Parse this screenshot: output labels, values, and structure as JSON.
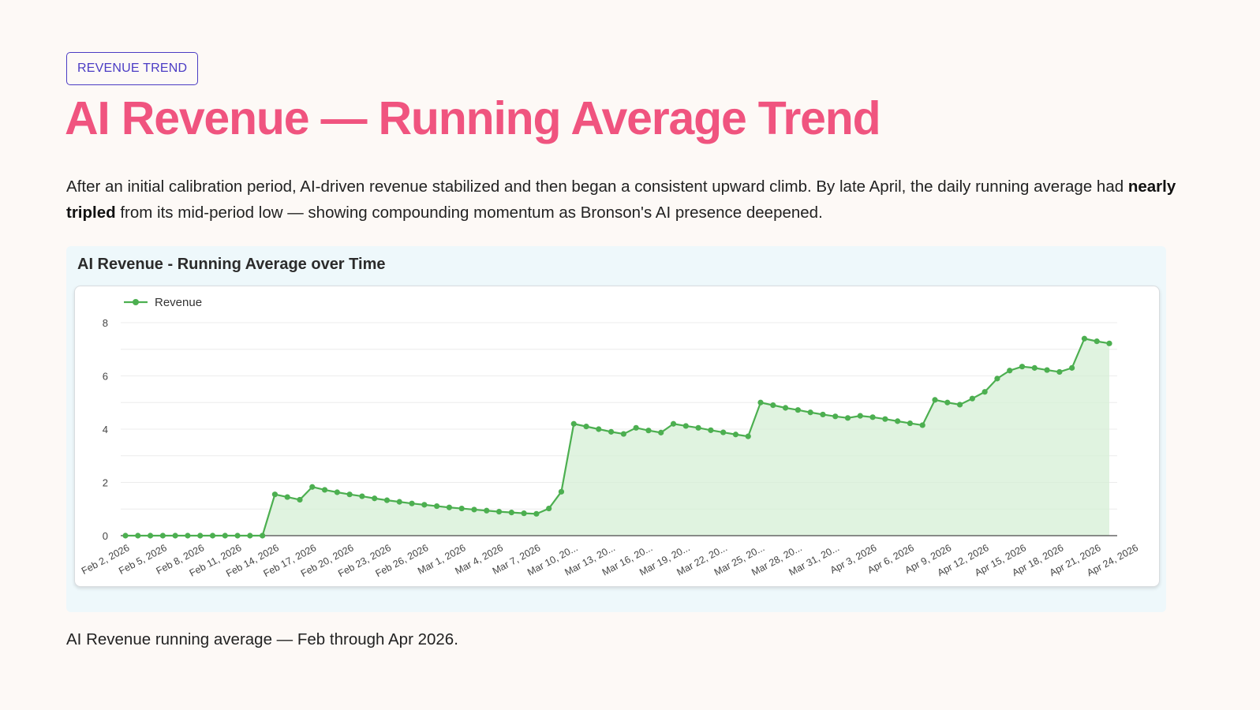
{
  "tag": "REVENUE TREND",
  "title": "AI Revenue — Running Average Trend",
  "description": {
    "before": "After an initial calibration period, AI-driven revenue stabilized and then began a consistent upward climb. By late April, the daily running average had ",
    "bold": "nearly tripled",
    "after": " from its mid-period low — showing compounding momentum as Bronson's AI presence deepened."
  },
  "caption": "AI Revenue running average — Feb through Apr 2026.",
  "colors": {
    "accent_title": "#f0547f",
    "tag": "#4b3cc4",
    "series_line": "#4caf50",
    "series_fill": "#d6efd6"
  },
  "chart_data": {
    "type": "area",
    "title": "AI Revenue - Running Average over Time",
    "xlabel": "",
    "ylabel": "",
    "ylim": [
      0,
      8
    ],
    "yticks": [
      0,
      2,
      4,
      6,
      8
    ],
    "grid": true,
    "legend_position": "top-left",
    "x_tick_labels": [
      "Feb 2, 2026",
      "Feb 5, 2026",
      "Feb 8, 2026",
      "Feb 11, 2026",
      "Feb 14, 2026",
      "Feb 17, 2026",
      "Feb 20, 2026",
      "Feb 23, 2026",
      "Feb 26, 2026",
      "Mar 1, 2026",
      "Mar 4, 2026",
      "Mar 7, 2026",
      "Mar 10, 20...",
      "Mar 13, 20...",
      "Mar 16, 20...",
      "Mar 19, 20...",
      "Mar 22, 20...",
      "Mar 25, 20...",
      "Mar 28, 20...",
      "Mar 31, 20...",
      "Apr 3, 2026",
      "Apr 6, 2026",
      "Apr 9, 2026",
      "Apr 12, 2026",
      "Apr 15, 2026",
      "Apr 18, 2026",
      "Apr 21, 2026",
      "Apr 24, 2026"
    ],
    "series": [
      {
        "name": "Revenue",
        "x_start": "Feb 2, 2026",
        "values": [
          0,
          0,
          0,
          0,
          0,
          0,
          0,
          0,
          0,
          0,
          0,
          0,
          1.55,
          1.45,
          1.35,
          1.83,
          1.72,
          1.63,
          1.55,
          1.48,
          1.4,
          1.33,
          1.27,
          1.21,
          1.16,
          1.11,
          1.06,
          1.02,
          0.98,
          0.94,
          0.9,
          0.87,
          0.84,
          0.82,
          1.02,
          1.65,
          4.2,
          4.1,
          4.0,
          3.9,
          3.82,
          4.05,
          3.95,
          3.87,
          4.2,
          4.12,
          4.05,
          3.96,
          3.88,
          3.8,
          3.73,
          5.0,
          4.9,
          4.8,
          4.72,
          4.63,
          4.55,
          4.48,
          4.42,
          4.5,
          4.45,
          4.38,
          4.3,
          4.22,
          4.15,
          5.1,
          5.0,
          4.92,
          5.15,
          5.4,
          5.9,
          6.2,
          6.35,
          6.3,
          6.22,
          6.15,
          6.3,
          7.4,
          7.3,
          7.22
        ]
      }
    ]
  }
}
